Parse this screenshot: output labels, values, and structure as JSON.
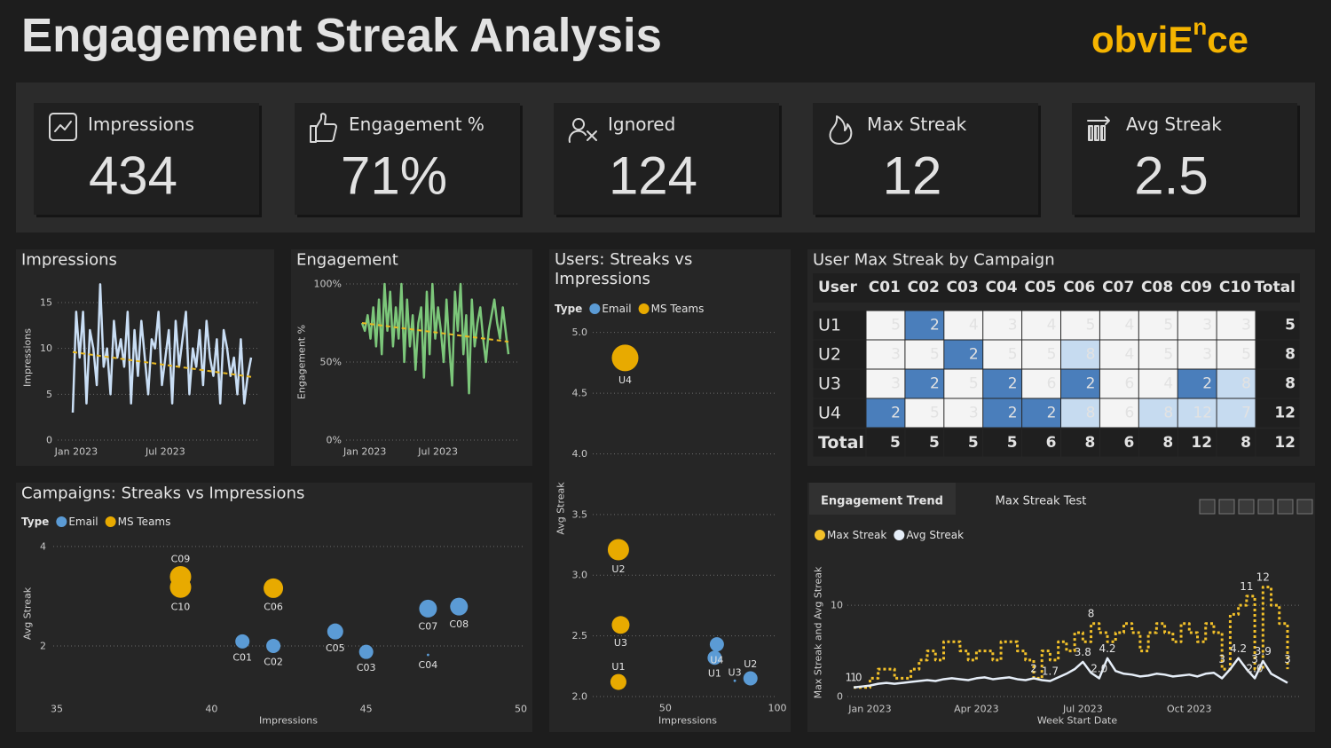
{
  "header": {
    "title": "Engagement Streak Analysis",
    "logo": {
      "text": "obviE",
      "sup": "n",
      "tail": "ce"
    }
  },
  "kpis": [
    {
      "label": "Impressions",
      "value": 434
    },
    {
      "label": "Engagement %",
      "value": "71%"
    },
    {
      "label": "Ignored",
      "value": 124
    },
    {
      "label": "Max Streak",
      "value": 12
    },
    {
      "label": "Avg Streak",
      "value": 2.5
    }
  ],
  "matrix": {
    "title": "User Max Streak by Campaign",
    "columns": [
      "User",
      "C01",
      "C02",
      "C03",
      "C04",
      "C05",
      "C06",
      "C07",
      "C08",
      "C09",
      "C10",
      "Total"
    ],
    "rows": [
      [
        "U1",
        5,
        2,
        4,
        3,
        4,
        5,
        4,
        5,
        3,
        3,
        5
      ],
      [
        "U2",
        3,
        5,
        2,
        5,
        5,
        8,
        4,
        5,
        3,
        5,
        8
      ],
      [
        "U3",
        3,
        2,
        5,
        2,
        6,
        2,
        6,
        4,
        2,
        8,
        8
      ],
      [
        "U4",
        2,
        5,
        3,
        2,
        2,
        8,
        6,
        8,
        12,
        7,
        12
      ],
      [
        "Total",
        5,
        5,
        5,
        5,
        6,
        8,
        6,
        8,
        12,
        8,
        12
      ]
    ]
  },
  "tabs": [
    "Engagement Trend",
    "Max Streak Test"
  ],
  "chart_data": [
    {
      "type": "line",
      "title": "Impressions",
      "y_label": "Impressions",
      "categories": [
        null,
        "Jan 2023",
        null,
        null,
        null,
        null,
        null,
        null,
        null,
        null,
        null,
        null,
        null,
        null,
        null,
        null,
        null,
        null,
        null,
        null,
        null,
        null,
        null,
        null,
        null,
        null,
        null,
        "Jul 2023",
        null,
        null,
        null,
        null,
        null,
        null,
        null,
        null,
        null,
        null,
        null,
        null,
        null,
        null,
        null,
        null,
        null,
        null,
        null,
        null,
        null,
        null,
        null,
        null,
        null
      ],
      "series": [
        {
          "color": "#c9def5",
          "values": [
            3,
            14,
            9,
            14,
            4,
            12,
            10,
            6,
            17,
            8,
            10,
            5,
            13,
            9,
            11,
            8,
            14,
            4,
            12,
            7,
            13,
            9,
            5,
            11,
            10,
            14,
            6,
            9,
            12,
            4,
            13,
            8,
            11,
            14,
            5,
            10,
            8,
            12,
            6,
            13,
            9,
            7,
            11,
            4,
            12,
            10,
            7,
            9,
            5,
            11,
            4,
            7,
            9
          ]
        }
      ],
      "trend": {
        "color": "#e8b923",
        "values": [
          9.6,
          6.9
        ]
      },
      "ylim": [
        0,
        18
      ],
      "yticks": [
        0,
        5,
        10,
        15
      ],
      "grid": true
    },
    {
      "type": "line",
      "title": "Engagement",
      "y_label": "Engagement %",
      "categories": [
        null,
        "Jan 2023",
        null,
        null,
        null,
        null,
        null,
        null,
        null,
        null,
        null,
        null,
        null,
        null,
        null,
        null,
        null,
        null,
        null,
        null,
        null,
        null,
        null,
        null,
        null,
        null,
        null,
        "Jul 2023",
        null,
        null,
        null,
        null,
        null,
        null,
        null,
        null,
        null,
        null,
        null,
        null,
        null,
        null,
        null,
        null,
        null,
        null,
        null,
        null,
        null,
        null,
        null,
        null,
        null
      ],
      "series": [
        {
          "color": "#7cc77a",
          "values": [
            75,
            70,
            80,
            65,
            85,
            60,
            90,
            55,
            100,
            70,
            95,
            60,
            85,
            65,
            100,
            50,
            90,
            60,
            80,
            45,
            75,
            85,
            40,
            95,
            55,
            100,
            65,
            85,
            70,
            50,
            90,
            60,
            35,
            95,
            70,
            100,
            55,
            80,
            30,
            90,
            60,
            75,
            85,
            65,
            50,
            70,
            80,
            90,
            75,
            65,
            85,
            70,
            55
          ]
        }
      ],
      "trend": {
        "color": "#e8b923",
        "values": [
          75,
          63
        ]
      },
      "ylim": [
        0,
        100
      ],
      "yticks": [
        {
          "value": 0,
          "label": "0%"
        },
        {
          "value": 50,
          "label": "50%"
        },
        {
          "value": 100,
          "label": "100%"
        }
      ],
      "grid": true
    },
    {
      "type": "scatter",
      "title": "Campaigns: Streaks vs Impressions",
      "x_label": "Impressions",
      "y_label": "Avg Streak",
      "legend_title": "Type",
      "series": [
        {
          "name": "Email",
          "color": "#5b9bd5",
          "labels": [
            "C01",
            "C02",
            "C03",
            "C04",
            "C05",
            "C07",
            "C08"
          ],
          "x": [
            41,
            42,
            45,
            47,
            44,
            47,
            48
          ],
          "values": [
            2.09,
            2.0,
            1.88,
            1.82,
            2.29,
            2.75,
            2.79
          ],
          "sizes": [
            64,
            64,
            64,
            2,
            81,
            100,
            100
          ]
        },
        {
          "name": "MS Teams",
          "color": "#e8aa00",
          "labels": [
            "C06",
            "C09",
            "C10"
          ],
          "x": [
            42,
            39,
            39
          ],
          "values": [
            3.16,
            3.39,
            3.18
          ],
          "sizes": [
            121,
            144,
            144
          ]
        }
      ],
      "xlim": [
        35,
        50
      ],
      "xticks": [
        35,
        40,
        45,
        50
      ],
      "ylim": [
        1,
        4.3
      ],
      "yticks": [
        2,
        4
      ],
      "grid": true
    },
    {
      "type": "scatter",
      "title": "Users: Streaks vs Impressions",
      "x_label": "Impressions",
      "y_label": "Avg Streak",
      "legend_title": "Type",
      "series": [
        {
          "name": "Email",
          "color": "#5b9bd5",
          "labels": [
            "U1",
            "U2",
            "U3",
            "U4"
          ],
          "x": [
            72,
            88,
            81,
            73
          ],
          "values": [
            2.32,
            2.15,
            2.13,
            2.43
          ],
          "sizes": [
            64,
            64,
            2,
            64
          ]
        },
        {
          "name": "MS Teams",
          "color": "#e8aa00",
          "labels": [
            "U1",
            "U2",
            "U3",
            "U4"
          ],
          "x": [
            29,
            29,
            30,
            32
          ],
          "values": [
            2.12,
            3.21,
            2.59,
            4.79
          ],
          "sizes": [
            81,
            144,
            100,
            225
          ]
        }
      ],
      "xlim": [
        10,
        100
      ],
      "xticks": [
        50,
        100
      ],
      "ylim": [
        2,
        5.1
      ],
      "yticks": [
        {
          "value": 2,
          "label": "2.0"
        },
        2.5,
        {
          "value": 3,
          "label": "3.0"
        },
        3.5,
        {
          "value": 4,
          "label": "4.0"
        },
        4.5,
        {
          "value": 5,
          "label": "5.0"
        }
      ],
      "grid": true
    },
    {
      "type": "line",
      "x_label": "Week Start Date",
      "y_label": "Max Streak and Avg Streak",
      "legend": true,
      "categories": [
        null,
        null,
        "Jan 2023",
        null,
        null,
        null,
        null,
        null,
        null,
        null,
        null,
        null,
        null,
        null,
        null,
        "Apr 2023",
        null,
        null,
        null,
        null,
        null,
        null,
        null,
        null,
        null,
        null,
        null,
        null,
        "Jul 2023",
        null,
        null,
        null,
        null,
        null,
        null,
        null,
        null,
        null,
        null,
        null,
        null,
        "Oct 2023",
        null,
        null,
        null,
        null,
        null,
        null,
        null,
        null,
        null,
        null,
        null,
        null
      ],
      "series": [
        {
          "name": "Max Streak",
          "color": "#f2c029",
          "step": true,
          "dotted": true,
          "values": [
            1,
            1,
            2,
            3,
            3,
            2,
            2,
            3,
            4,
            5,
            4,
            6,
            6,
            5,
            4,
            5,
            5,
            4,
            6,
            6,
            5,
            4,
            2,
            5,
            4,
            6,
            5,
            7,
            6,
            8,
            7,
            6,
            7,
            8,
            7,
            5,
            7,
            8,
            7,
            6,
            8,
            7,
            6,
            8,
            7,
            3,
            9,
            10,
            11,
            3,
            12,
            10,
            8,
            3
          ],
          "value_labels": [
            "1",
            null,
            null,
            null,
            null,
            null,
            null,
            null,
            null,
            null,
            null,
            null,
            null,
            null,
            null,
            null,
            null,
            null,
            null,
            null,
            null,
            null,
            "2",
            null,
            null,
            null,
            null,
            null,
            null,
            "8",
            null,
            null,
            null,
            null,
            null,
            null,
            null,
            null,
            null,
            null,
            null,
            null,
            null,
            null,
            null,
            "3",
            null,
            null,
            "11",
            "3",
            "12",
            null,
            null,
            "3"
          ]
        },
        {
          "name": "Avg Streak",
          "color": "#e6eef8",
          "values": [
            1.0,
            1.1,
            1.2,
            1.4,
            1.5,
            1.4,
            1.5,
            1.6,
            1.7,
            1.8,
            1.7,
            1.9,
            2.0,
            1.9,
            1.8,
            2.0,
            2.1,
            1.9,
            2.0,
            2.1,
            1.9,
            1.8,
            2.0,
            1.8,
            1.7,
            2.1,
            2.5,
            3.0,
            3.8,
            2.6,
            2.0,
            4.2,
            2.8,
            2.5,
            2.4,
            2.2,
            2.3,
            2.5,
            2.4,
            2.2,
            2.3,
            2.4,
            2.2,
            2.5,
            2.6,
            2.0,
            3.0,
            4.2,
            3.0,
            2.0,
            3.9,
            2.5,
            2.0,
            1.5
          ],
          "value_labels": [
            "1.0",
            null,
            null,
            null,
            null,
            null,
            null,
            null,
            null,
            null,
            null,
            null,
            null,
            null,
            null,
            null,
            null,
            null,
            null,
            null,
            null,
            null,
            null,
            null,
            "1.7",
            null,
            null,
            null,
            "3.8",
            null,
            "2.0",
            "4.2",
            null,
            null,
            null,
            null,
            null,
            null,
            null,
            null,
            null,
            null,
            null,
            null,
            null,
            null,
            null,
            "4.2",
            null,
            "2.0",
            "3.9",
            null,
            null,
            null
          ]
        }
      ],
      "ylim": [
        0,
        14
      ],
      "yticks": [
        0,
        10
      ],
      "grid": true
    }
  ]
}
